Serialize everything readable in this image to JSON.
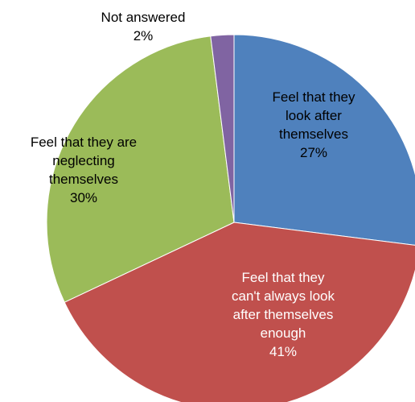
{
  "chart_data": {
    "type": "pie",
    "start_angle_deg": 0,
    "direction": "clockwise",
    "slices": [
      {
        "label_lines": [
          "Feel that they",
          "look after",
          "themselves"
        ],
        "percent_label": "27%",
        "value": 27,
        "color": "#4F81BD",
        "label_color": "#000000"
      },
      {
        "label_lines": [
          "Feel that they",
          "can't always look",
          "after themselves",
          "enough"
        ],
        "percent_label": "41%",
        "value": 41,
        "color": "#C0504D",
        "label_color": "#ffffff"
      },
      {
        "label_lines": [
          "Feel that they are",
          "neglecting",
          "themselves"
        ],
        "percent_label": "30%",
        "value": 30,
        "color": "#9BBB59",
        "label_color": "#000000"
      },
      {
        "label_lines": [
          "Not answered"
        ],
        "percent_label": "2%",
        "value": 2,
        "color": "#8064A2",
        "label_color": "#000000"
      }
    ]
  }
}
